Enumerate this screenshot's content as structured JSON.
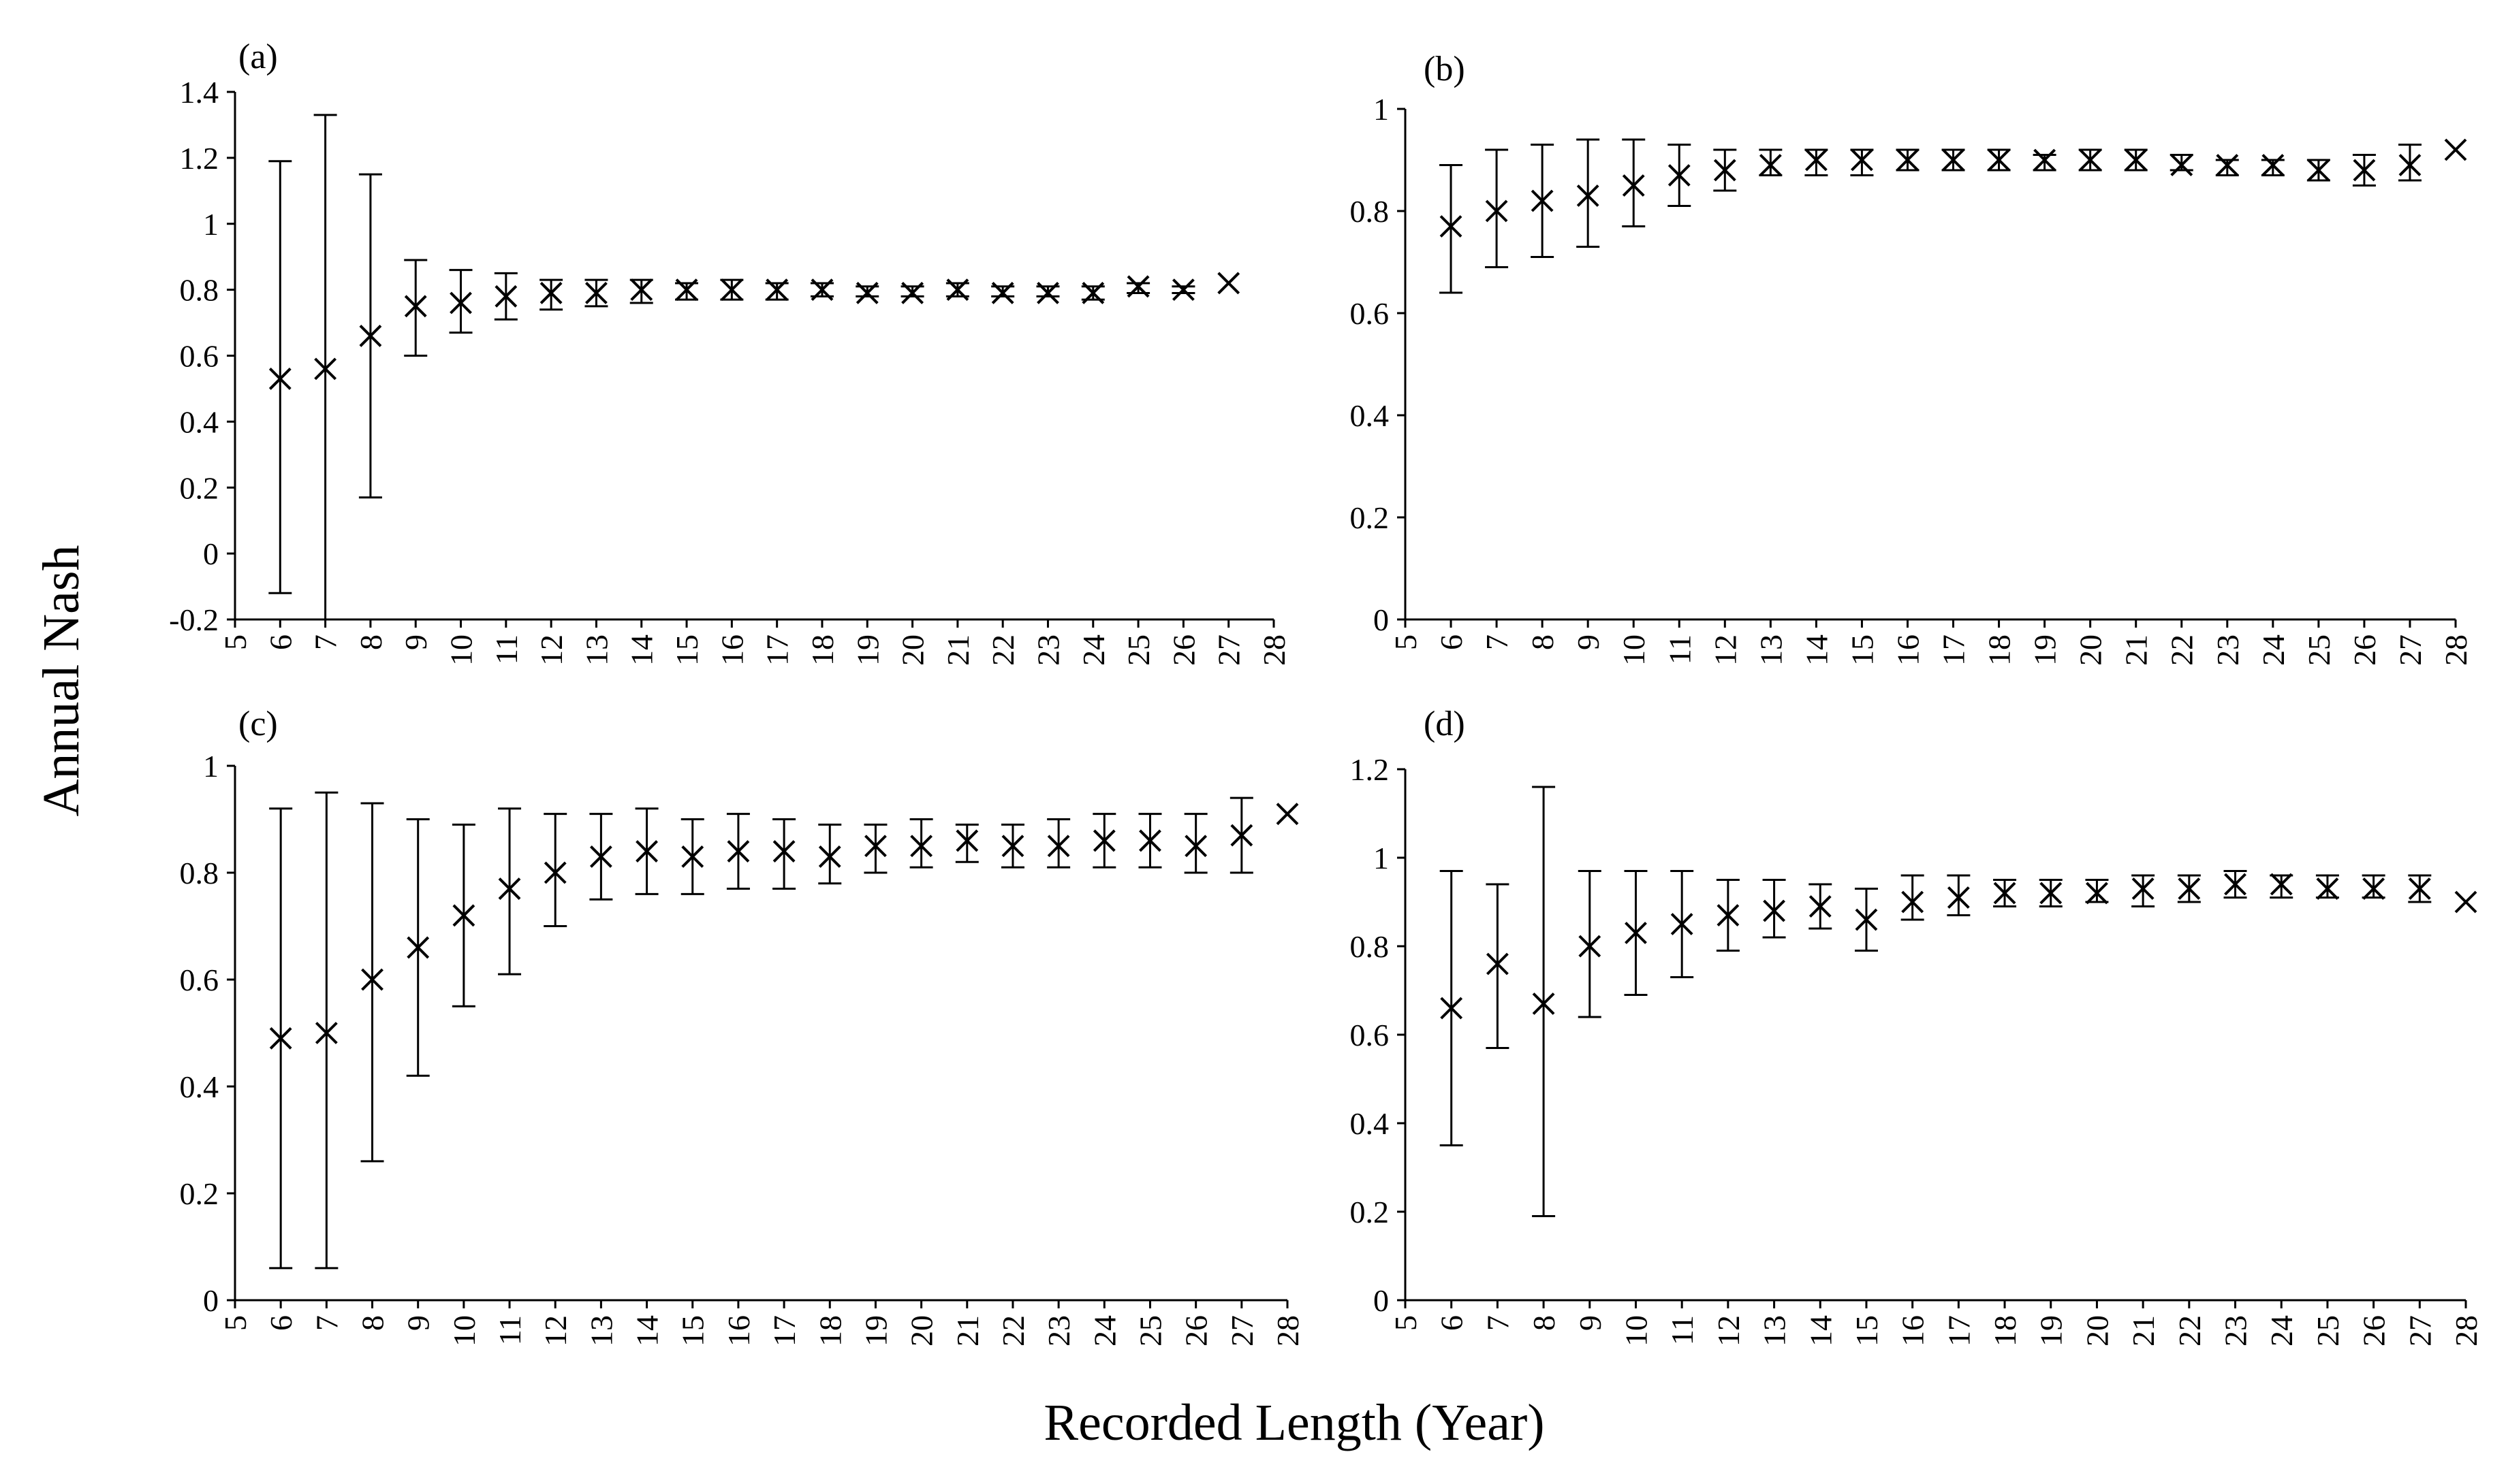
{
  "figure": {
    "ylabel": "Annual Nash",
    "xlabel": "Recorded Length  (Year)"
  },
  "chart_data": [
    {
      "type": "scatter",
      "panel_label": "(a)",
      "x_ticks": [
        5,
        6,
        7,
        8,
        9,
        10,
        11,
        12,
        13,
        14,
        15,
        16,
        17,
        18,
        19,
        20,
        21,
        22,
        23,
        24,
        25,
        26,
        27,
        28
      ],
      "y_ticks": [
        "-0.2",
        "0",
        "0.2",
        "0.4",
        "0.6",
        "0.8",
        "1",
        "1.2",
        "1.4"
      ],
      "xlim": [
        5,
        28
      ],
      "ylim": [
        -0.2,
        1.4
      ],
      "points": [
        {
          "x": 6,
          "y": 0.53,
          "low": -0.12,
          "high": 1.19
        },
        {
          "x": 7,
          "y": 0.56,
          "low": -0.2,
          "high": 1.33
        },
        {
          "x": 8,
          "y": 0.66,
          "low": 0.17,
          "high": 1.15
        },
        {
          "x": 9,
          "y": 0.75,
          "low": 0.6,
          "high": 0.89
        },
        {
          "x": 10,
          "y": 0.76,
          "low": 0.67,
          "high": 0.86
        },
        {
          "x": 11,
          "y": 0.78,
          "low": 0.71,
          "high": 0.85
        },
        {
          "x": 12,
          "y": 0.79,
          "low": 0.74,
          "high": 0.83
        },
        {
          "x": 13,
          "y": 0.79,
          "low": 0.75,
          "high": 0.83
        },
        {
          "x": 14,
          "y": 0.8,
          "low": 0.76,
          "high": 0.83
        },
        {
          "x": 15,
          "y": 0.8,
          "low": 0.77,
          "high": 0.82
        },
        {
          "x": 16,
          "y": 0.8,
          "low": 0.77,
          "high": 0.83
        },
        {
          "x": 17,
          "y": 0.8,
          "low": 0.77,
          "high": 0.82
        },
        {
          "x": 18,
          "y": 0.8,
          "low": 0.78,
          "high": 0.82
        },
        {
          "x": 19,
          "y": 0.79,
          "low": 0.78,
          "high": 0.81
        },
        {
          "x": 20,
          "y": 0.79,
          "low": 0.78,
          "high": 0.81
        },
        {
          "x": 21,
          "y": 0.8,
          "low": 0.78,
          "high": 0.82
        },
        {
          "x": 22,
          "y": 0.79,
          "low": 0.78,
          "high": 0.81
        },
        {
          "x": 23,
          "y": 0.79,
          "low": 0.78,
          "high": 0.81
        },
        {
          "x": 24,
          "y": 0.79,
          "low": 0.77,
          "high": 0.81
        },
        {
          "x": 25,
          "y": 0.81,
          "low": 0.79,
          "high": 0.82
        },
        {
          "x": 26,
          "y": 0.8,
          "low": 0.79,
          "high": 0.81
        },
        {
          "x": 27,
          "y": 0.82
        }
      ]
    },
    {
      "type": "scatter",
      "panel_label": "(b)",
      "x_ticks": [
        5,
        6,
        7,
        8,
        9,
        10,
        11,
        12,
        13,
        14,
        15,
        16,
        17,
        18,
        19,
        20,
        21,
        22,
        23,
        24,
        25,
        26,
        27,
        28
      ],
      "y_ticks": [
        "0",
        "0.2",
        "0.4",
        "0.6",
        "0.8",
        "1"
      ],
      "xlim": [
        5,
        28
      ],
      "ylim": [
        0,
        1
      ],
      "points": [
        {
          "x": 6,
          "y": 0.77,
          "low": 0.64,
          "high": 0.89
        },
        {
          "x": 7,
          "y": 0.8,
          "low": 0.69,
          "high": 0.92
        },
        {
          "x": 8,
          "y": 0.82,
          "low": 0.71,
          "high": 0.93
        },
        {
          "x": 9,
          "y": 0.83,
          "low": 0.73,
          "high": 0.94
        },
        {
          "x": 10,
          "y": 0.85,
          "low": 0.77,
          "high": 0.94
        },
        {
          "x": 11,
          "y": 0.87,
          "low": 0.81,
          "high": 0.93
        },
        {
          "x": 12,
          "y": 0.88,
          "low": 0.84,
          "high": 0.92
        },
        {
          "x": 13,
          "y": 0.89,
          "low": 0.87,
          "high": 0.92
        },
        {
          "x": 14,
          "y": 0.9,
          "low": 0.87,
          "high": 0.92
        },
        {
          "x": 15,
          "y": 0.9,
          "low": 0.87,
          "high": 0.92
        },
        {
          "x": 16,
          "y": 0.9,
          "low": 0.88,
          "high": 0.92
        },
        {
          "x": 17,
          "y": 0.9,
          "low": 0.88,
          "high": 0.92
        },
        {
          "x": 18,
          "y": 0.9,
          "low": 0.88,
          "high": 0.92
        },
        {
          "x": 19,
          "y": 0.9,
          "low": 0.88,
          "high": 0.91
        },
        {
          "x": 20,
          "y": 0.9,
          "low": 0.88,
          "high": 0.92
        },
        {
          "x": 21,
          "y": 0.9,
          "low": 0.88,
          "high": 0.92
        },
        {
          "x": 22,
          "y": 0.89,
          "low": 0.88,
          "high": 0.91
        },
        {
          "x": 23,
          "y": 0.89,
          "low": 0.87,
          "high": 0.9
        },
        {
          "x": 24,
          "y": 0.89,
          "low": 0.87,
          "high": 0.9
        },
        {
          "x": 25,
          "y": 0.88,
          "low": 0.86,
          "high": 0.9
        },
        {
          "x": 26,
          "y": 0.88,
          "low": 0.85,
          "high": 0.91
        },
        {
          "x": 27,
          "y": 0.89,
          "low": 0.86,
          "high": 0.93
        },
        {
          "x": 28,
          "y": 0.92
        }
      ]
    },
    {
      "type": "scatter",
      "panel_label": "(c)",
      "x_ticks": [
        5,
        6,
        7,
        8,
        9,
        10,
        11,
        12,
        13,
        14,
        15,
        16,
        17,
        18,
        19,
        20,
        21,
        22,
        23,
        24,
        25,
        26,
        27,
        28
      ],
      "y_ticks": [
        "0",
        "0.2",
        "0.4",
        "0.6",
        "0.8",
        "1"
      ],
      "xlim": [
        5,
        28
      ],
      "ylim": [
        0,
        1
      ],
      "points": [
        {
          "x": 6,
          "y": 0.49,
          "low": 0.06,
          "high": 0.92
        },
        {
          "x": 7,
          "y": 0.5,
          "low": 0.06,
          "high": 0.95
        },
        {
          "x": 8,
          "y": 0.6,
          "low": 0.26,
          "high": 0.93
        },
        {
          "x": 9,
          "y": 0.66,
          "low": 0.42,
          "high": 0.9
        },
        {
          "x": 10,
          "y": 0.72,
          "low": 0.55,
          "high": 0.89
        },
        {
          "x": 11,
          "y": 0.77,
          "low": 0.61,
          "high": 0.92
        },
        {
          "x": 12,
          "y": 0.8,
          "low": 0.7,
          "high": 0.91
        },
        {
          "x": 13,
          "y": 0.83,
          "low": 0.75,
          "high": 0.91
        },
        {
          "x": 14,
          "y": 0.84,
          "low": 0.76,
          "high": 0.92
        },
        {
          "x": 15,
          "y": 0.83,
          "low": 0.76,
          "high": 0.9
        },
        {
          "x": 16,
          "y": 0.84,
          "low": 0.77,
          "high": 0.91
        },
        {
          "x": 17,
          "y": 0.84,
          "low": 0.77,
          "high": 0.9
        },
        {
          "x": 18,
          "y": 0.83,
          "low": 0.78,
          "high": 0.89
        },
        {
          "x": 19,
          "y": 0.85,
          "low": 0.8,
          "high": 0.89
        },
        {
          "x": 20,
          "y": 0.85,
          "low": 0.81,
          "high": 0.9
        },
        {
          "x": 21,
          "y": 0.86,
          "low": 0.82,
          "high": 0.89
        },
        {
          "x": 22,
          "y": 0.85,
          "low": 0.81,
          "high": 0.89
        },
        {
          "x": 23,
          "y": 0.85,
          "low": 0.81,
          "high": 0.9
        },
        {
          "x": 24,
          "y": 0.86,
          "low": 0.81,
          "high": 0.91
        },
        {
          "x": 25,
          "y": 0.86,
          "low": 0.81,
          "high": 0.91
        },
        {
          "x": 26,
          "y": 0.85,
          "low": 0.8,
          "high": 0.91
        },
        {
          "x": 27,
          "y": 0.87,
          "low": 0.8,
          "high": 0.94
        },
        {
          "x": 28,
          "y": 0.91
        }
      ]
    },
    {
      "type": "scatter",
      "panel_label": "(d)",
      "x_ticks": [
        5,
        6,
        7,
        8,
        9,
        10,
        11,
        12,
        13,
        14,
        15,
        16,
        17,
        18,
        19,
        20,
        21,
        22,
        23,
        24,
        25,
        26,
        27,
        28
      ],
      "y_ticks": [
        "0",
        "0.2",
        "0.4",
        "0.6",
        "0.8",
        "1",
        "1.2"
      ],
      "xlim": [
        5,
        28
      ],
      "ylim": [
        0,
        1.2
      ],
      "points": [
        {
          "x": 6,
          "y": 0.66,
          "low": 0.35,
          "high": 0.97
        },
        {
          "x": 7,
          "y": 0.76,
          "low": 0.57,
          "high": 0.94
        },
        {
          "x": 8,
          "y": 0.67,
          "low": 0.19,
          "high": 1.16
        },
        {
          "x": 9,
          "y": 0.8,
          "low": 0.64,
          "high": 0.97
        },
        {
          "x": 10,
          "y": 0.83,
          "low": 0.69,
          "high": 0.97
        },
        {
          "x": 11,
          "y": 0.85,
          "low": 0.73,
          "high": 0.97
        },
        {
          "x": 12,
          "y": 0.87,
          "low": 0.79,
          "high": 0.95
        },
        {
          "x": 13,
          "y": 0.88,
          "low": 0.82,
          "high": 0.95
        },
        {
          "x": 14,
          "y": 0.89,
          "low": 0.84,
          "high": 0.94
        },
        {
          "x": 15,
          "y": 0.86,
          "low": 0.79,
          "high": 0.93
        },
        {
          "x": 16,
          "y": 0.9,
          "low": 0.86,
          "high": 0.96
        },
        {
          "x": 17,
          "y": 0.91,
          "low": 0.87,
          "high": 0.96
        },
        {
          "x": 18,
          "y": 0.92,
          "low": 0.89,
          "high": 0.95
        },
        {
          "x": 19,
          "y": 0.92,
          "low": 0.89,
          "high": 0.95
        },
        {
          "x": 20,
          "y": 0.92,
          "low": 0.9,
          "high": 0.95
        },
        {
          "x": 21,
          "y": 0.93,
          "low": 0.89,
          "high": 0.96
        },
        {
          "x": 22,
          "y": 0.93,
          "low": 0.9,
          "high": 0.96
        },
        {
          "x": 23,
          "y": 0.94,
          "low": 0.91,
          "high": 0.97
        },
        {
          "x": 24,
          "y": 0.94,
          "low": 0.91,
          "high": 0.96
        },
        {
          "x": 25,
          "y": 0.93,
          "low": 0.91,
          "high": 0.96
        },
        {
          "x": 26,
          "y": 0.93,
          "low": 0.91,
          "high": 0.96
        },
        {
          "x": 27,
          "y": 0.93,
          "low": 0.9,
          "high": 0.96
        },
        {
          "x": 28,
          "y": 0.9
        }
      ]
    }
  ]
}
